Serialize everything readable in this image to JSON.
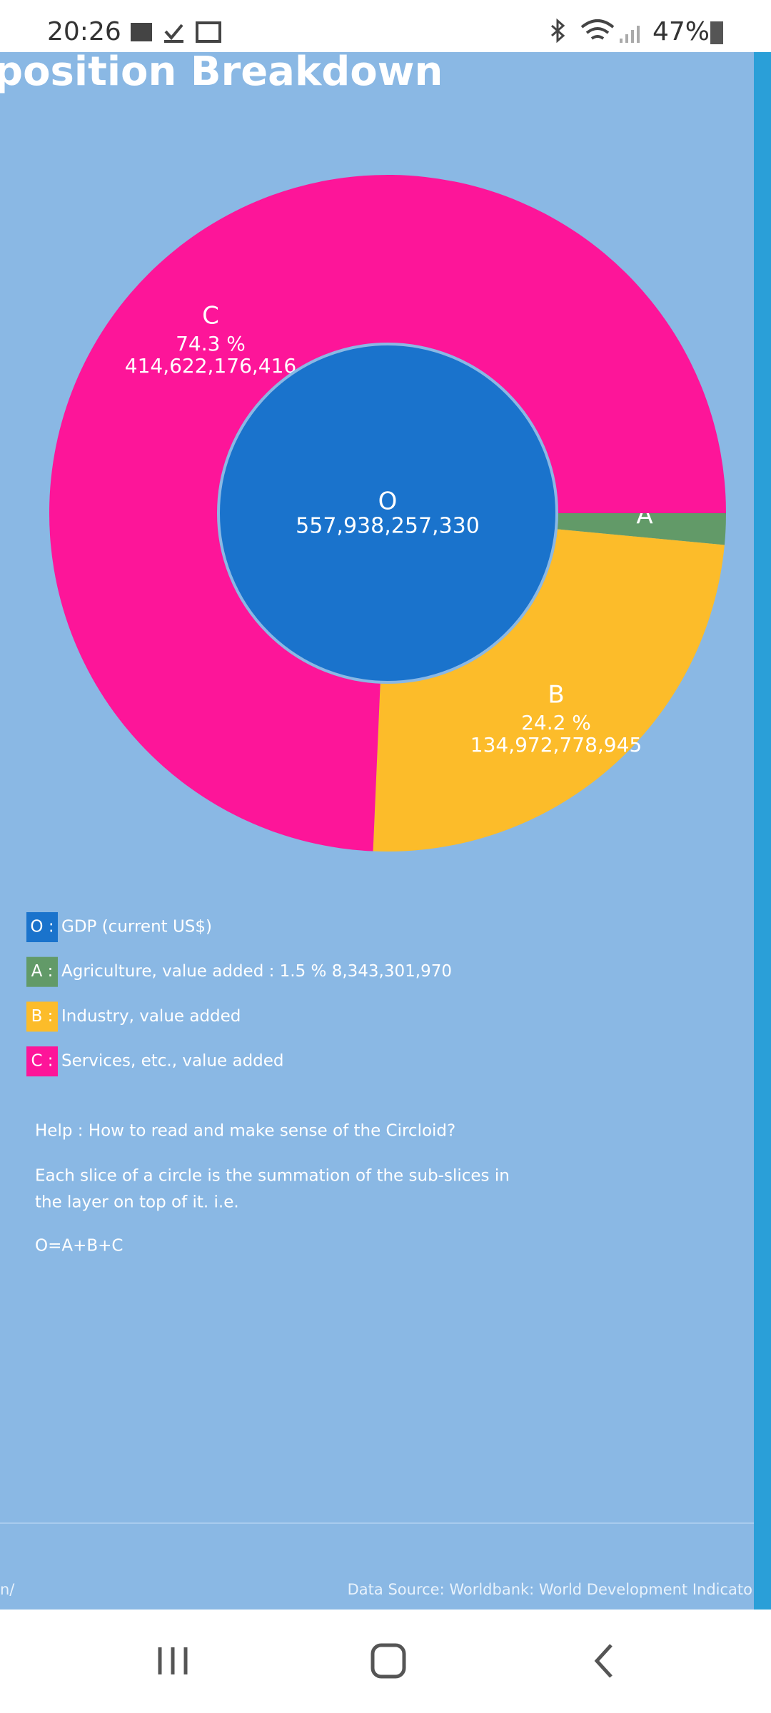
{
  "status_bar": {
    "time": "20:26",
    "battery": "47%"
  },
  "header": {
    "title": "position Breakdown"
  },
  "circloid": {
    "center": {
      "label": "O",
      "value": 557938257330,
      "value_label": "557,938,257,330",
      "color": "#1a73cc"
    },
    "slices": [
      {
        "label": "A",
        "value": 8343301970,
        "color": "#629a68"
      },
      {
        "label": "B",
        "value": 134972778945,
        "percent_label": "24.2 %",
        "value_label": "134,972,778,945",
        "color": "#fcbc2a"
      },
      {
        "label": "C",
        "value": 414622176416,
        "percent_label": "74.3 %",
        "value_label": "414,622,176,416",
        "color": "#fd1599"
      }
    ]
  },
  "legend": [
    {
      "key": "O :",
      "text": "GDP (current US$)",
      "color": "#1a73cc"
    },
    {
      "key": "A :",
      "text": "Agriculture, value added : 1.5 %  8,343,301,970",
      "color": "#629a68"
    },
    {
      "key": "B :",
      "text": "Industry, value added",
      "color": "#fcbc2a"
    },
    {
      "key": "C :",
      "text": "Services, etc., value added",
      "color": "#fd1599"
    }
  ],
  "help": {
    "title": "Help : How to read and make sense of the Circloid?",
    "lines": [
      "Each slice of a circle is the summation of the sub-slices in",
      "the layer on top of it. i.e."
    ],
    "formula": "O=A+B+C"
  },
  "footer": {
    "left": "n/",
    "right": "Data Source: Worldbank: World Development Indicato"
  }
}
